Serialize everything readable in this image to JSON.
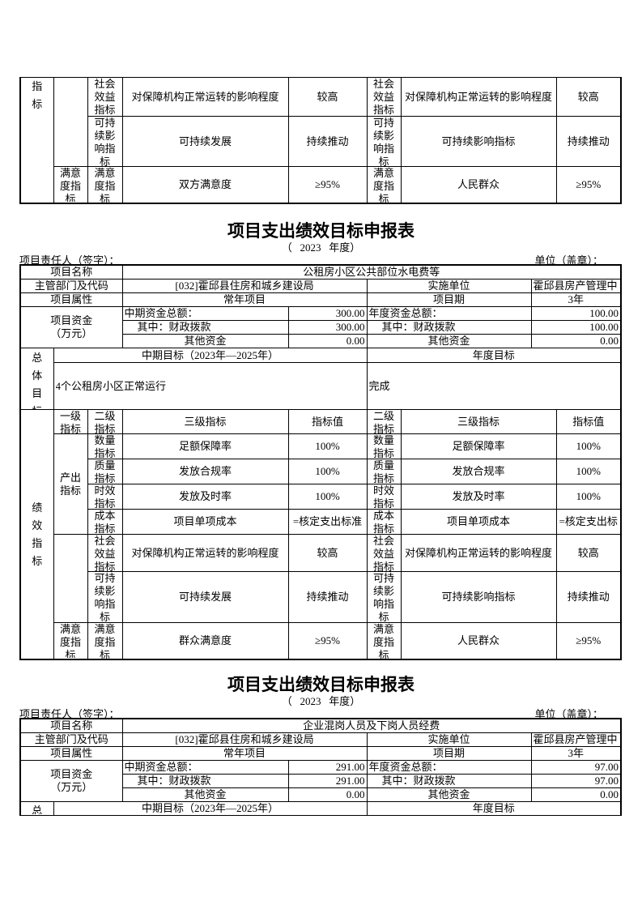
{
  "fragment": {
    "perf_label_tail": "指标",
    "groups": [
      {
        "l1": "",
        "rows": [
          {
            "l2": "社会效益指标",
            "l3": "对保障机构正常运转的影响程度",
            "value": "较高",
            "r_l2": "社会效益指标",
            "r_l3": "对保障机构正常运转的影响程度",
            "r_value": "较高"
          },
          {
            "l2": "可持续影响指标",
            "l3": "可持续发展",
            "value": "持续推动",
            "r_l2": "可持续影响指标",
            "r_l3": "可持续影响指标",
            "r_value": "持续推动"
          }
        ]
      },
      {
        "l1": "满意度指标",
        "rows": [
          {
            "l2": "满意度指标",
            "l3": "双方满意度",
            "value": "≥95%",
            "r_l2": "满意度指标",
            "r_l3": "人民群众",
            "r_value": "≥95%"
          }
        ]
      }
    ]
  },
  "reports": [
    {
      "title": "项目支出绩效目标申报表",
      "year_line": "（   2023   年度）",
      "responsible": "项目责任人（签字）：",
      "unit": "单位（盖章）：",
      "name_label": "项目名称",
      "name": "公租房小区公共部位水电费等",
      "dept_label": "主管部门及代码",
      "dept": "[032]霍邱县住房和城乡建设局",
      "impl_label": "实施单位",
      "impl": "霍邱县房产管理中",
      "attr_label": "项目属性",
      "attr": "常年项目",
      "period_label": "项目期",
      "period": "3年",
      "funds_label": "项目资金（万元）",
      "mid_total_label": "中期资金总额：",
      "mid_total": "300.00",
      "fin_label": "其中：财政拨款",
      "mid_fin": "300.00",
      "other_label": "其他资金",
      "mid_other": "0.00",
      "annual_total_label": "年度资金总额：",
      "annual_total": "100.00",
      "annual_fin": "100.00",
      "annual_other": "0.00",
      "goal_label": "总体目标",
      "mid_goal_label": "中期目标（2023年—2025年）",
      "annual_goal_label": "年度目标",
      "mid_goal": "4个公租房小区正常运行",
      "annual_goal": "完成",
      "perf_label": "绩效指标",
      "ind_headers": {
        "l1": "一级指标",
        "l2": "二级指标",
        "l3": "三级指标",
        "value": "指标值",
        "r_l2": "二级指标",
        "r_l3": "三级指标",
        "r_value": "指标值"
      },
      "groups": [
        {
          "l1": "产出指标",
          "rows": [
            {
              "l2": "数量指标",
              "l3": "足额保障率",
              "value": "100%",
              "r_l2": "数量指标",
              "r_l3": "足额保障率",
              "r_value": "100%"
            },
            {
              "l2": "质量指标",
              "l3": "发放合规率",
              "value": "100%",
              "r_l2": "质量指标",
              "r_l3": "发放合规率",
              "r_value": "100%"
            },
            {
              "l2": "时效指标",
              "l3": "发放及时率",
              "value": "100%",
              "r_l2": "时效指标",
              "r_l3": "发放及时率",
              "r_value": "100%"
            },
            {
              "l2": "成本指标",
              "l3": "项目单项成本",
              "value": "=核定支出标准",
              "r_l2": "成本指标",
              "r_l3": "项目单项成本",
              "r_value": "=核定支出标"
            }
          ]
        },
        {
          "l1": "",
          "rows": [
            {
              "l2": "社会效益指标",
              "l3": "对保障机构正常运转的影响程度",
              "value": "较高",
              "r_l2": "社会效益指标",
              "r_l3": "对保障机构正常运转的影响程度",
              "r_value": "较高"
            },
            {
              "l2": "可持续影响指标",
              "l3": "可持续发展",
              "value": "持续推动",
              "r_l2": "可持续影响指标",
              "r_l3": "可持续影响指标",
              "r_value": "持续推动"
            }
          ]
        },
        {
          "l1": "满意度指标",
          "rows": [
            {
              "l2": "满意度指标",
              "l3": "群众满意度",
              "value": "≥95%",
              "r_l2": "满意度指标",
              "r_l3": "人民群众",
              "r_value": "≥95%"
            }
          ]
        }
      ]
    },
    {
      "title": "项目支出绩效目标申报表",
      "year_line": "（   2023   年度）",
      "responsible": "项目责任人（签字）：",
      "unit": "单位（盖章）：",
      "name_label": "项目名称",
      "name": "企业混岗人员及下岗人员经费",
      "dept_label": "主管部门及代码",
      "dept": "[032]霍邱县住房和城乡建设局",
      "impl_label": "实施单位",
      "impl": "霍邱县房产管理中",
      "attr_label": "项目属性",
      "attr": "常年项目",
      "period_label": "项目期",
      "period": "3年",
      "funds_label": "项目资金（万元）",
      "mid_total_label": "中期资金总额：",
      "mid_total": "291.00",
      "fin_label": "其中：财政拨款",
      "mid_fin": "291.00",
      "other_label": "其他资金",
      "mid_other": "0.00",
      "annual_total_label": "年度资金总额：",
      "annual_total": "97.00",
      "annual_fin": "97.00",
      "annual_other": "0.00",
      "goal_label": "总",
      "mid_goal_label": "中期目标（2023年—2025年）",
      "annual_goal_label": "年度目标"
    }
  ]
}
